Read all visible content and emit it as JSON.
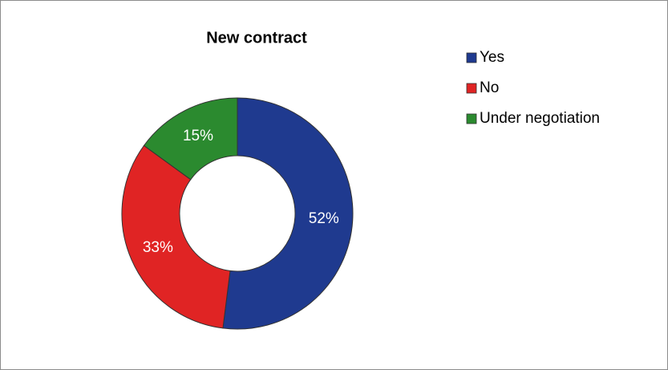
{
  "chart_data": {
    "type": "donut",
    "title": "New contract",
    "categories": [
      "Yes",
      "No",
      "Under negotiation"
    ],
    "values": [
      52,
      33,
      15
    ],
    "value_labels": [
      "52%",
      "33%",
      "15%"
    ],
    "colors": [
      "#1f3a8f",
      "#e02424",
      "#2b8a2f"
    ],
    "legend": "right"
  }
}
